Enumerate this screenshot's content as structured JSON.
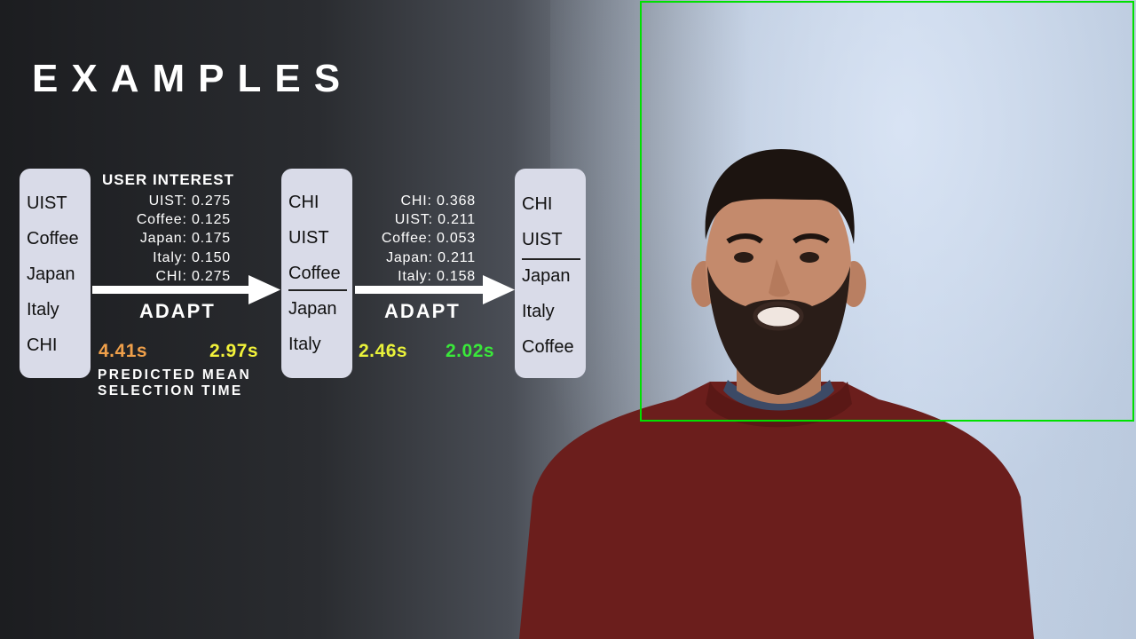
{
  "title": "EXAMPLES",
  "menus": [
    {
      "items": [
        "UIST",
        "Coffee",
        "Japan",
        "Italy",
        "CHI"
      ]
    },
    {
      "items": [
        "CHI",
        "UIST",
        "Coffee",
        "Japan",
        "Italy"
      ]
    },
    {
      "items": [
        "CHI",
        "UIST",
        "Japan",
        "Italy",
        "Coffee"
      ]
    }
  ],
  "user_interest": {
    "heading": "USER INTEREST",
    "scores": [
      "UIST: 0.275",
      "Coffee: 0.125",
      "Japan: 0.175",
      "Italy: 0.150",
      "CHI: 0.275"
    ]
  },
  "second_scores": [
    "CHI: 0.368",
    "UIST: 0.211",
    "Coffee: 0.053",
    "Japan: 0.211",
    "Italy: 0.158"
  ],
  "adapt_labels": [
    "ADAPT",
    "ADAPT"
  ],
  "times": [
    {
      "value": "4.41s",
      "color": "#f0a04a"
    },
    {
      "value": "2.97s",
      "color": "#f2f23a"
    },
    {
      "value": "2.46s",
      "color": "#e9f23a"
    },
    {
      "value": "2.02s",
      "color": "#3ae83a"
    }
  ],
  "caption": [
    "PREDICTED MEAN",
    "SELECTION TIME"
  ],
  "colors": {
    "highlight_border": "#00e000",
    "menu_bg": "#d9dbe8"
  }
}
